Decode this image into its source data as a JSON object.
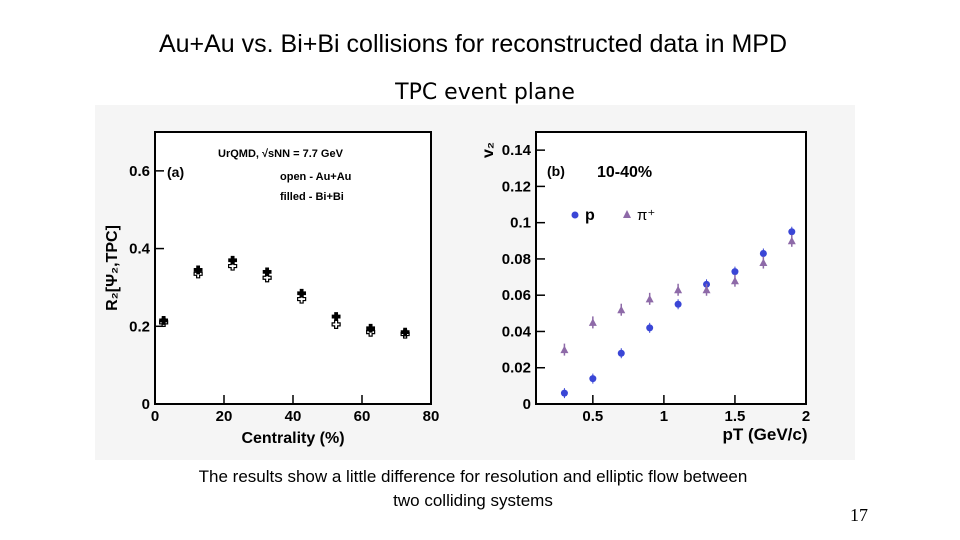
{
  "slide": {
    "title": "Au+Au vs. Bi+Bi collisions for reconstructed data in MPD",
    "subtitle": "TPC event plane",
    "caption_line1": "The results show a little difference for  resolution and elliptic flow between",
    "caption_line2": "two colliding systems",
    "page_number": "17"
  },
  "colors": {
    "black": "#000000",
    "proton": "#3a46d6",
    "pion": "#8e6aa8",
    "frame": "#000000"
  },
  "chart_data": [
    {
      "type": "scatter",
      "panel_label": "(a)",
      "ylabel": "R₂[Ψ₂,TPC]",
      "xlabel": "Centrality (%)",
      "xlim": [
        0,
        80
      ],
      "ylim": [
        0,
        0.7
      ],
      "xticks": [
        "0",
        "20",
        "40",
        "60",
        "80"
      ],
      "yticks": [
        "0",
        "0.2",
        "0.4",
        "0.6"
      ],
      "legend": [
        "UrQMD, √sNN = 7.7 GeV",
        "open - Au+Au",
        "filled - Bi+Bi"
      ],
      "series": [
        {
          "name": "open - Au+Au",
          "marker": "open-cross",
          "x": [
            2.5,
            12.5,
            22.5,
            32.5,
            42.5,
            52.5,
            62.5,
            72.5
          ],
          "y": [
            0.21,
            0.335,
            0.355,
            0.325,
            0.27,
            0.205,
            0.185,
            0.18
          ]
        },
        {
          "name": "filled - Bi+Bi",
          "marker": "filled-cross",
          "x": [
            2.5,
            12.5,
            22.5,
            32.5,
            42.5,
            52.5,
            62.5,
            72.5
          ],
          "y": [
            0.215,
            0.345,
            0.37,
            0.34,
            0.285,
            0.225,
            0.195,
            0.185
          ]
        }
      ]
    },
    {
      "type": "scatter",
      "panel_label": "(b)",
      "centrality_label": "10-40%",
      "ylabel": "v₂",
      "xlabel": "pT (GeV/c)",
      "xlim": [
        0.1,
        2.0
      ],
      "ylim": [
        0,
        0.15
      ],
      "xticks": [
        "0.5",
        "1",
        "1.5",
        "2"
      ],
      "yticks": [
        "0",
        "0.02",
        "0.04",
        "0.06",
        "0.08",
        "0.1",
        "0.12",
        "0.14"
      ],
      "legend": [
        "p",
        "π⁺"
      ],
      "series": [
        {
          "name": "p",
          "marker": "circle",
          "x": [
            0.3,
            0.5,
            0.7,
            0.9,
            1.1,
            1.3,
            1.5,
            1.7,
            1.9
          ],
          "y": [
            0.006,
            0.014,
            0.028,
            0.042,
            0.055,
            0.066,
            0.073,
            0.083,
            0.095
          ]
        },
        {
          "name": "π⁺",
          "marker": "triangle",
          "x": [
            0.3,
            0.5,
            0.7,
            0.9,
            1.1,
            1.3,
            1.5,
            1.7,
            1.9
          ],
          "y": [
            0.03,
            0.045,
            0.052,
            0.058,
            0.063,
            0.063,
            0.068,
            0.078,
            0.09
          ]
        }
      ]
    }
  ]
}
